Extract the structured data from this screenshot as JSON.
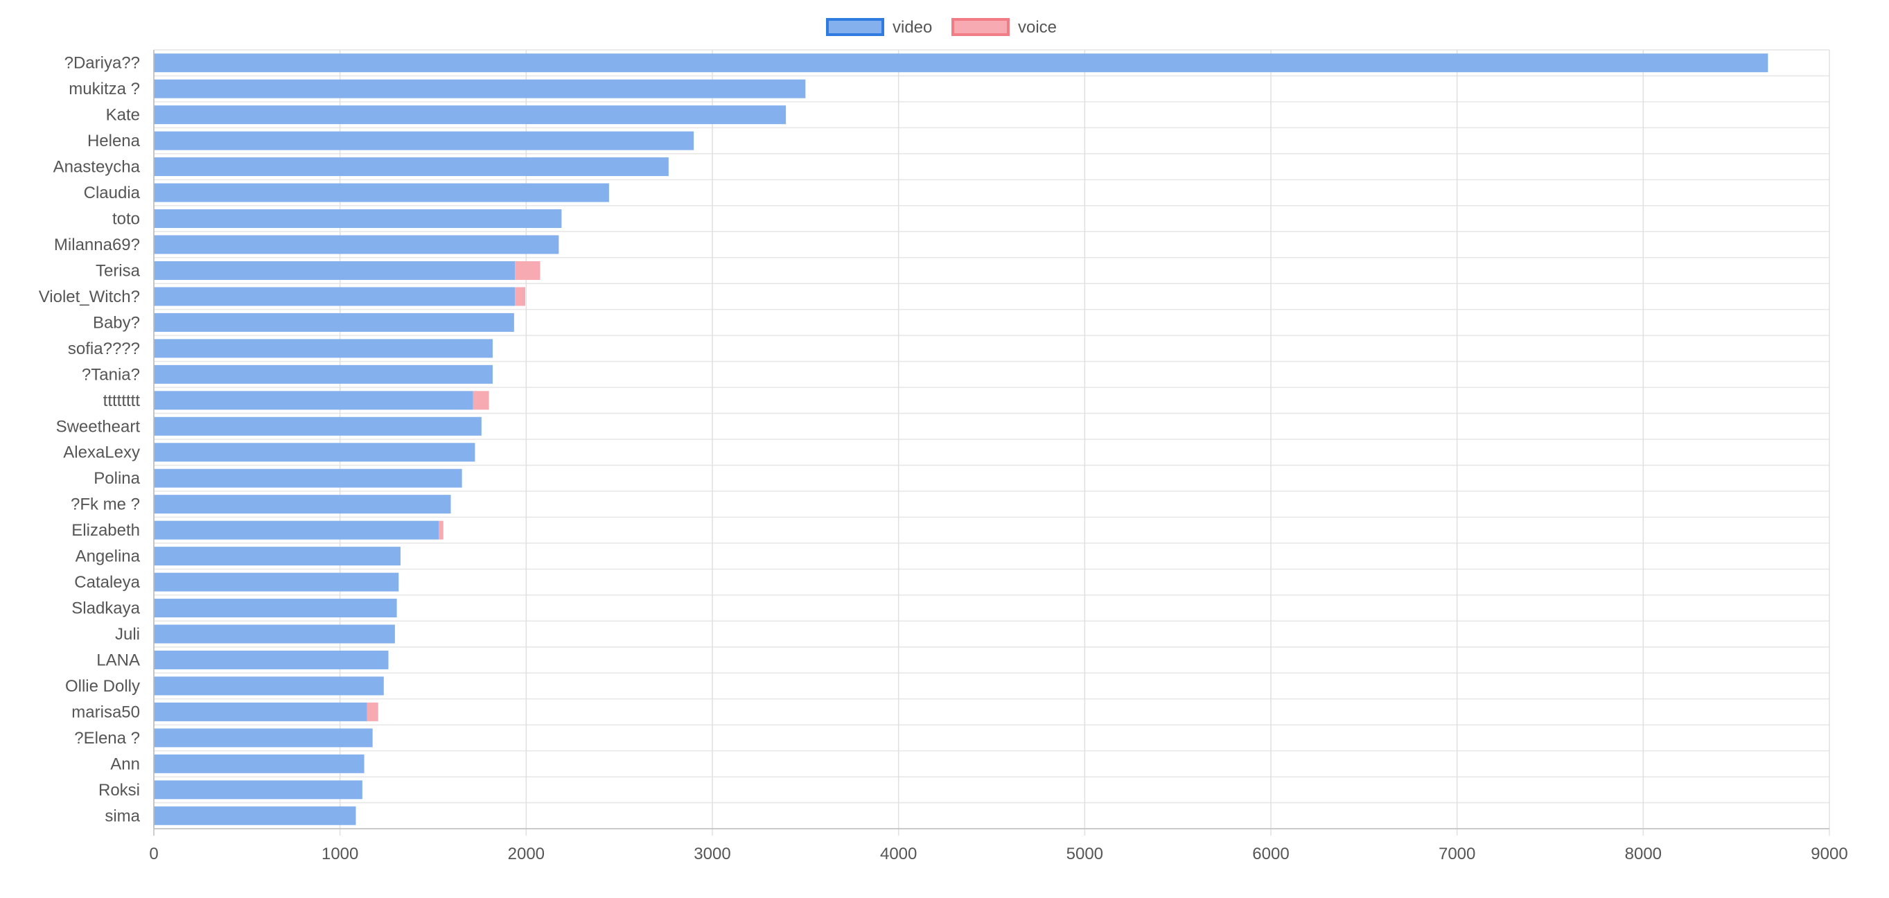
{
  "chart_data": {
    "type": "bar",
    "orientation": "horizontal",
    "stacked": true,
    "categories": [
      "?Dariya??",
      "mukitza ?",
      "Kate",
      "Helena",
      "Anasteycha",
      "Claudia",
      "toto",
      "Milanna69?",
      "Terisa",
      "Violet_Witch?",
      "Baby?",
      "sofia????",
      "?Tania?",
      "tttttttt",
      "Sweetheart",
      "AlexaLexy",
      "Polina",
      "?Fk me ?",
      "Elizabeth",
      "Angelina",
      "Cataleya",
      "Sladkaya",
      "Juli",
      "LANA",
      "Ollie Dolly",
      "marisa50",
      "?Elena ?",
      "Ann",
      "Roksi",
      "sima"
    ],
    "series": [
      {
        "name": "video",
        "color": "#85b0ee",
        "border_color": "#2f7be0",
        "values": [
          8670,
          3500,
          3395,
          2900,
          2765,
          2445,
          2190,
          2175,
          1940,
          1940,
          1935,
          1820,
          1820,
          1715,
          1760,
          1725,
          1655,
          1595,
          1530,
          1325,
          1315,
          1305,
          1295,
          1260,
          1235,
          1145,
          1175,
          1130,
          1120,
          1085
        ]
      },
      {
        "name": "voice",
        "color": "#f8aab3",
        "border_color": "#f27c86",
        "values": [
          0,
          0,
          0,
          0,
          0,
          0,
          0,
          0,
          135,
          55,
          0,
          0,
          0,
          85,
          0,
          0,
          0,
          0,
          25,
          0,
          0,
          0,
          0,
          0,
          0,
          60,
          0,
          0,
          0,
          0
        ]
      }
    ],
    "xlim": [
      0,
      9000
    ],
    "xticks": [
      "0",
      "1000",
      "2000",
      "3000",
      "4000",
      "5000",
      "6000",
      "7000",
      "8000",
      "9000"
    ],
    "xlabel": "",
    "ylabel": "",
    "title": "",
    "grid": true,
    "legend": "top-center"
  }
}
